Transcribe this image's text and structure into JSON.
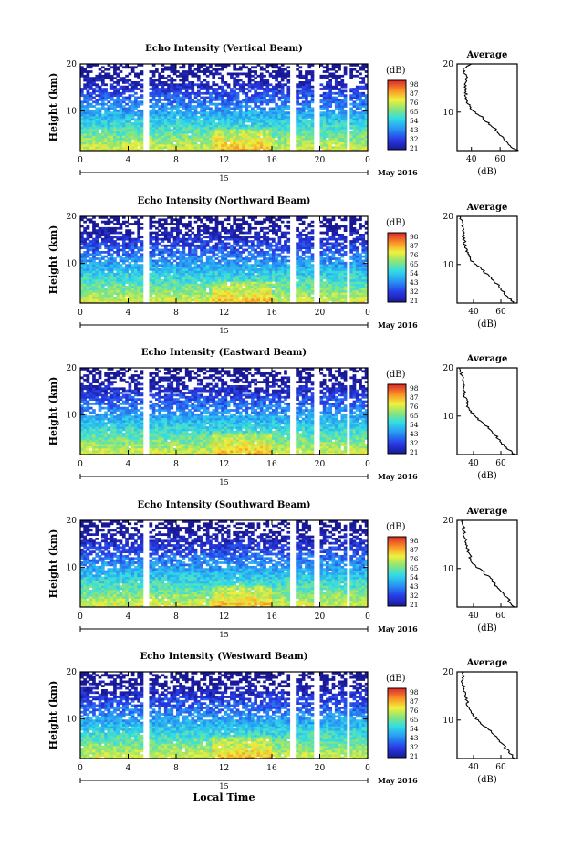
{
  "chart_data": [
    {
      "type": "heatmap",
      "title": "Echo Intensity (Vertical Beam)",
      "ylabel": "Height (km)",
      "xticks": [
        "0",
        "4",
        "8",
        "12",
        "16",
        "20",
        "0"
      ],
      "yticks": [
        "20",
        "10"
      ],
      "date_label": "15",
      "month_label": "May 2016",
      "colorbar": {
        "title": "(dB)",
        "ticks": [
          "98",
          "87",
          "76",
          "65",
          "54",
          "43",
          "32",
          "21"
        ],
        "range": [
          21,
          98
        ]
      },
      "data_gaps_hours": [
        [
          5.2,
          5.8
        ],
        [
          17.6,
          17.9
        ],
        [
          19.6,
          19.9
        ],
        [
          22.2,
          22.4
        ]
      ],
      "profile": {
        "title": "Average",
        "xlabel": "(dB)",
        "xticks": [
          "40",
          "60"
        ],
        "yticks": [
          "20",
          "10"
        ],
        "xlim": [
          30,
          72
        ],
        "ylim": [
          2,
          20
        ],
        "height_km": [
          2,
          3,
          4,
          5,
          6,
          7,
          8,
          9,
          10,
          11,
          12,
          13,
          14,
          15,
          16,
          17,
          18,
          19,
          20
        ],
        "db": [
          72,
          67,
          64,
          61,
          58,
          55,
          51,
          47,
          42,
          39,
          37,
          36,
          36,
          36,
          36,
          37,
          35,
          35,
          40
        ]
      }
    },
    {
      "type": "heatmap",
      "title": "Echo Intensity (Northward Beam)",
      "ylabel": "Height (km)",
      "xticks": [
        "0",
        "4",
        "8",
        "12",
        "16",
        "20",
        "0"
      ],
      "yticks": [
        "20",
        "10"
      ],
      "date_label": "15",
      "month_label": "May 2016",
      "colorbar": {
        "title": "(dB)",
        "ticks": [
          "98",
          "87",
          "76",
          "65",
          "54",
          "43",
          "32",
          "21"
        ],
        "range": [
          21,
          98
        ]
      },
      "data_gaps_hours": [
        [
          5.2,
          5.8
        ],
        [
          17.6,
          17.9
        ],
        [
          19.6,
          19.9
        ],
        [
          22.2,
          22.4
        ]
      ],
      "profile": {
        "title": "Average",
        "xlabel": "(dB)",
        "xticks": [
          "40",
          "60"
        ],
        "yticks": [
          "20",
          "10"
        ],
        "xlim": [
          28,
          72
        ],
        "ylim": [
          2,
          20
        ],
        "height_km": [
          2,
          3,
          4,
          5,
          6,
          7,
          8,
          9,
          10,
          11,
          12,
          13,
          14,
          15,
          16,
          17,
          18,
          19,
          20
        ],
        "db": [
          70,
          66,
          63,
          60,
          57,
          54,
          50,
          46,
          42,
          38,
          36,
          35,
          34,
          33,
          33,
          32,
          32,
          31,
          30
        ]
      }
    },
    {
      "type": "heatmap",
      "title": "Echo Intensity (Eastward Beam)",
      "ylabel": "Height (km)",
      "xticks": [
        "0",
        "4",
        "8",
        "12",
        "16",
        "20",
        "0"
      ],
      "yticks": [
        "20",
        "10"
      ],
      "date_label": "15",
      "month_label": "May 2016",
      "colorbar": {
        "title": "(dB)",
        "ticks": [
          "98",
          "87",
          "76",
          "65",
          "54",
          "43",
          "32",
          "21"
        ],
        "range": [
          21,
          98
        ]
      },
      "data_gaps_hours": [
        [
          5.2,
          5.8
        ],
        [
          17.6,
          17.9
        ],
        [
          19.6,
          19.9
        ],
        [
          22.2,
          22.4
        ]
      ],
      "profile": {
        "title": "Average",
        "xlabel": "(dB)",
        "xticks": [
          "40",
          "60"
        ],
        "yticks": [
          "20",
          "10"
        ],
        "xlim": [
          28,
          72
        ],
        "ylim": [
          2,
          20
        ],
        "height_km": [
          2,
          3,
          4,
          5,
          6,
          7,
          8,
          9,
          10,
          11,
          12,
          13,
          14,
          15,
          16,
          17,
          18,
          19,
          20
        ],
        "db": [
          70,
          66,
          62,
          59,
          56,
          53,
          49,
          45,
          41,
          38,
          36,
          35,
          34,
          33,
          33,
          32,
          32,
          31,
          30
        ]
      }
    },
    {
      "type": "heatmap",
      "title": "Echo Intensity (Southward Beam)",
      "ylabel": "Height (km)",
      "xticks": [
        "0",
        "4",
        "8",
        "12",
        "16",
        "20",
        "0"
      ],
      "yticks": [
        "20",
        "10"
      ],
      "date_label": "15",
      "month_label": "May 2016",
      "colorbar": {
        "title": "(dB)",
        "ticks": [
          "98",
          "87",
          "76",
          "65",
          "54",
          "43",
          "32",
          "21"
        ],
        "range": [
          21,
          98
        ]
      },
      "data_gaps_hours": [
        [
          5.2,
          5.8
        ],
        [
          17.6,
          17.9
        ],
        [
          19.6,
          19.9
        ],
        [
          22.2,
          22.4
        ]
      ],
      "profile": {
        "title": "Average",
        "xlabel": "(dB)",
        "xticks": [
          "40",
          "60"
        ],
        "yticks": [
          "20",
          "10"
        ],
        "xlim": [
          28,
          72
        ],
        "ylim": [
          2,
          20
        ],
        "height_km": [
          2,
          3,
          4,
          5,
          6,
          7,
          8,
          9,
          10,
          11,
          12,
          13,
          14,
          15,
          16,
          17,
          18,
          19,
          20
        ],
        "db": [
          70,
          67,
          64,
          61,
          58,
          55,
          52,
          48,
          44,
          40,
          38,
          37,
          36,
          35,
          34,
          33,
          33,
          32,
          32
        ]
      }
    },
    {
      "type": "heatmap",
      "title": "Echo Intensity (Westward Beam)",
      "ylabel": "Height (km)",
      "xticks": [
        "0",
        "4",
        "8",
        "12",
        "16",
        "20",
        "0"
      ],
      "yticks": [
        "20",
        "10"
      ],
      "date_label": "15",
      "month_label": "May 2016",
      "xlabel": "Local Time",
      "colorbar": {
        "title": "(dB)",
        "ticks": [
          "98",
          "87",
          "76",
          "65",
          "54",
          "43",
          "32",
          "21"
        ],
        "range": [
          21,
          98
        ]
      },
      "data_gaps_hours": [
        [
          5.2,
          5.8
        ],
        [
          17.6,
          17.9
        ],
        [
          19.6,
          19.9
        ],
        [
          22.2,
          22.4
        ]
      ],
      "profile": {
        "title": "Average",
        "xlabel": "(dB)",
        "xticks": [
          "40",
          "60"
        ],
        "yticks": [
          "20",
          "10"
        ],
        "xlim": [
          28,
          72
        ],
        "ylim": [
          2,
          20
        ],
        "height_km": [
          2,
          3,
          4,
          5,
          6,
          7,
          8,
          9,
          10,
          11,
          12,
          13,
          14,
          15,
          16,
          17,
          18,
          19,
          20
        ],
        "db": [
          70,
          67,
          64,
          61,
          58,
          55,
          51,
          47,
          43,
          40,
          38,
          36,
          35,
          34,
          33,
          33,
          32,
          32,
          33
        ]
      }
    }
  ]
}
